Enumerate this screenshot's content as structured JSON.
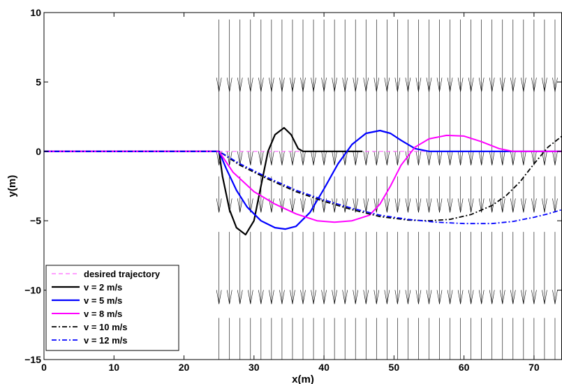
{
  "chart_data": {
    "type": "line",
    "xlabel": "x(m)",
    "ylabel": "y(m)",
    "xlim": [
      0,
      74
    ],
    "ylim": [
      -15,
      10
    ],
    "x_ticks": [
      0,
      10,
      20,
      30,
      40,
      50,
      60,
      70
    ],
    "y_ticks": [
      -15,
      -10,
      -5,
      0,
      5,
      10
    ],
    "grid": false,
    "legend_position": "bottom-left",
    "wind_field": {
      "description_hidden": true,
      "x_start": 25,
      "x_step": 1.5,
      "y_segments": [
        [
          9.5,
          4.3
        ],
        [
          5.0,
          -1.0
        ],
        [
          -1.8,
          -4.4
        ],
        [
          -5.8,
          -11.0
        ],
        [
          -12.0,
          -15.0
        ]
      ],
      "color": "#000000"
    },
    "series": [
      {
        "name": "desired trajectory",
        "color": "#ff66ff",
        "dash": "6,4",
        "width": 1.2,
        "points": [
          [
            0,
            0
          ],
          [
            74,
            0
          ]
        ]
      },
      {
        "name": "v = 2 m/s",
        "color": "#000000",
        "dash": "",
        "width": 2.2,
        "points": [
          [
            0,
            0
          ],
          [
            25,
            0
          ],
          [
            25.5,
            -1.8
          ],
          [
            26.5,
            -4.2
          ],
          [
            27.5,
            -5.5
          ],
          [
            28.8,
            -6.0
          ],
          [
            30,
            -5.0
          ],
          [
            31,
            -2.5
          ],
          [
            32,
            0.0
          ],
          [
            33,
            1.2
          ],
          [
            34.3,
            1.7
          ],
          [
            35.3,
            1.2
          ],
          [
            36.3,
            0.2
          ],
          [
            37,
            0.0
          ],
          [
            45.5,
            0.0
          ]
        ]
      },
      {
        "name": "v = 5 m/s",
        "color": "#0000ff",
        "dash": "",
        "width": 2.2,
        "points": [
          [
            0,
            0
          ],
          [
            25,
            0
          ],
          [
            26,
            -1.2
          ],
          [
            27.5,
            -2.8
          ],
          [
            29,
            -4.0
          ],
          [
            31,
            -5.0
          ],
          [
            33,
            -5.5
          ],
          [
            34.5,
            -5.6
          ],
          [
            36,
            -5.4
          ],
          [
            38,
            -4.4
          ],
          [
            40,
            -2.7
          ],
          [
            42,
            -0.9
          ],
          [
            44,
            0.5
          ],
          [
            46,
            1.3
          ],
          [
            48,
            1.5
          ],
          [
            49.5,
            1.3
          ],
          [
            51,
            0.8
          ],
          [
            53,
            0.2
          ],
          [
            55,
            0.0
          ],
          [
            74,
            0.0
          ]
        ]
      },
      {
        "name": "v = 8 m/s",
        "color": "#ff00ff",
        "dash": "",
        "width": 2.0,
        "points": [
          [
            0,
            0
          ],
          [
            25,
            0
          ],
          [
            27,
            -1.5
          ],
          [
            30,
            -2.9
          ],
          [
            33,
            -3.8
          ],
          [
            36,
            -4.5
          ],
          [
            39,
            -5.0
          ],
          [
            41.5,
            -5.1
          ],
          [
            44,
            -5.0
          ],
          [
            46.5,
            -4.6
          ],
          [
            48,
            -3.8
          ],
          [
            49.5,
            -2.5
          ],
          [
            51,
            -1.0
          ],
          [
            53,
            0.3
          ],
          [
            55,
            0.9
          ],
          [
            57.5,
            1.15
          ],
          [
            60,
            1.1
          ],
          [
            62.5,
            0.7
          ],
          [
            65,
            0.2
          ],
          [
            67,
            0.0
          ],
          [
            74,
            0.0
          ]
        ]
      },
      {
        "name": "v = 10 m/s",
        "color": "#000000",
        "dash": "7,3,2,3",
        "width": 1.8,
        "points": [
          [
            0,
            0
          ],
          [
            25,
            0
          ],
          [
            28,
            -1.0
          ],
          [
            32,
            -2.0
          ],
          [
            36,
            -2.9
          ],
          [
            40,
            -3.6
          ],
          [
            44,
            -4.2
          ],
          [
            48,
            -4.7
          ],
          [
            52,
            -4.95
          ],
          [
            55,
            -5.0
          ],
          [
            58,
            -4.9
          ],
          [
            61,
            -4.55
          ],
          [
            64,
            -3.9
          ],
          [
            66,
            -3.2
          ],
          [
            68,
            -2.2
          ],
          [
            70,
            -0.9
          ],
          [
            72,
            0.3
          ],
          [
            74,
            1.1
          ]
        ]
      },
      {
        "name": "v = 12 m/s",
        "color": "#0000ff",
        "dash": "7,3,2,3",
        "width": 1.8,
        "points": [
          [
            0,
            0
          ],
          [
            25,
            0
          ],
          [
            28,
            -0.9
          ],
          [
            32,
            -1.9
          ],
          [
            36,
            -2.8
          ],
          [
            40,
            -3.5
          ],
          [
            44,
            -4.1
          ],
          [
            48,
            -4.6
          ],
          [
            52,
            -4.9
          ],
          [
            56,
            -5.1
          ],
          [
            60,
            -5.2
          ],
          [
            64,
            -5.2
          ],
          [
            67,
            -5.05
          ],
          [
            70,
            -4.75
          ],
          [
            72,
            -4.5
          ],
          [
            74,
            -4.2
          ]
        ]
      }
    ]
  }
}
